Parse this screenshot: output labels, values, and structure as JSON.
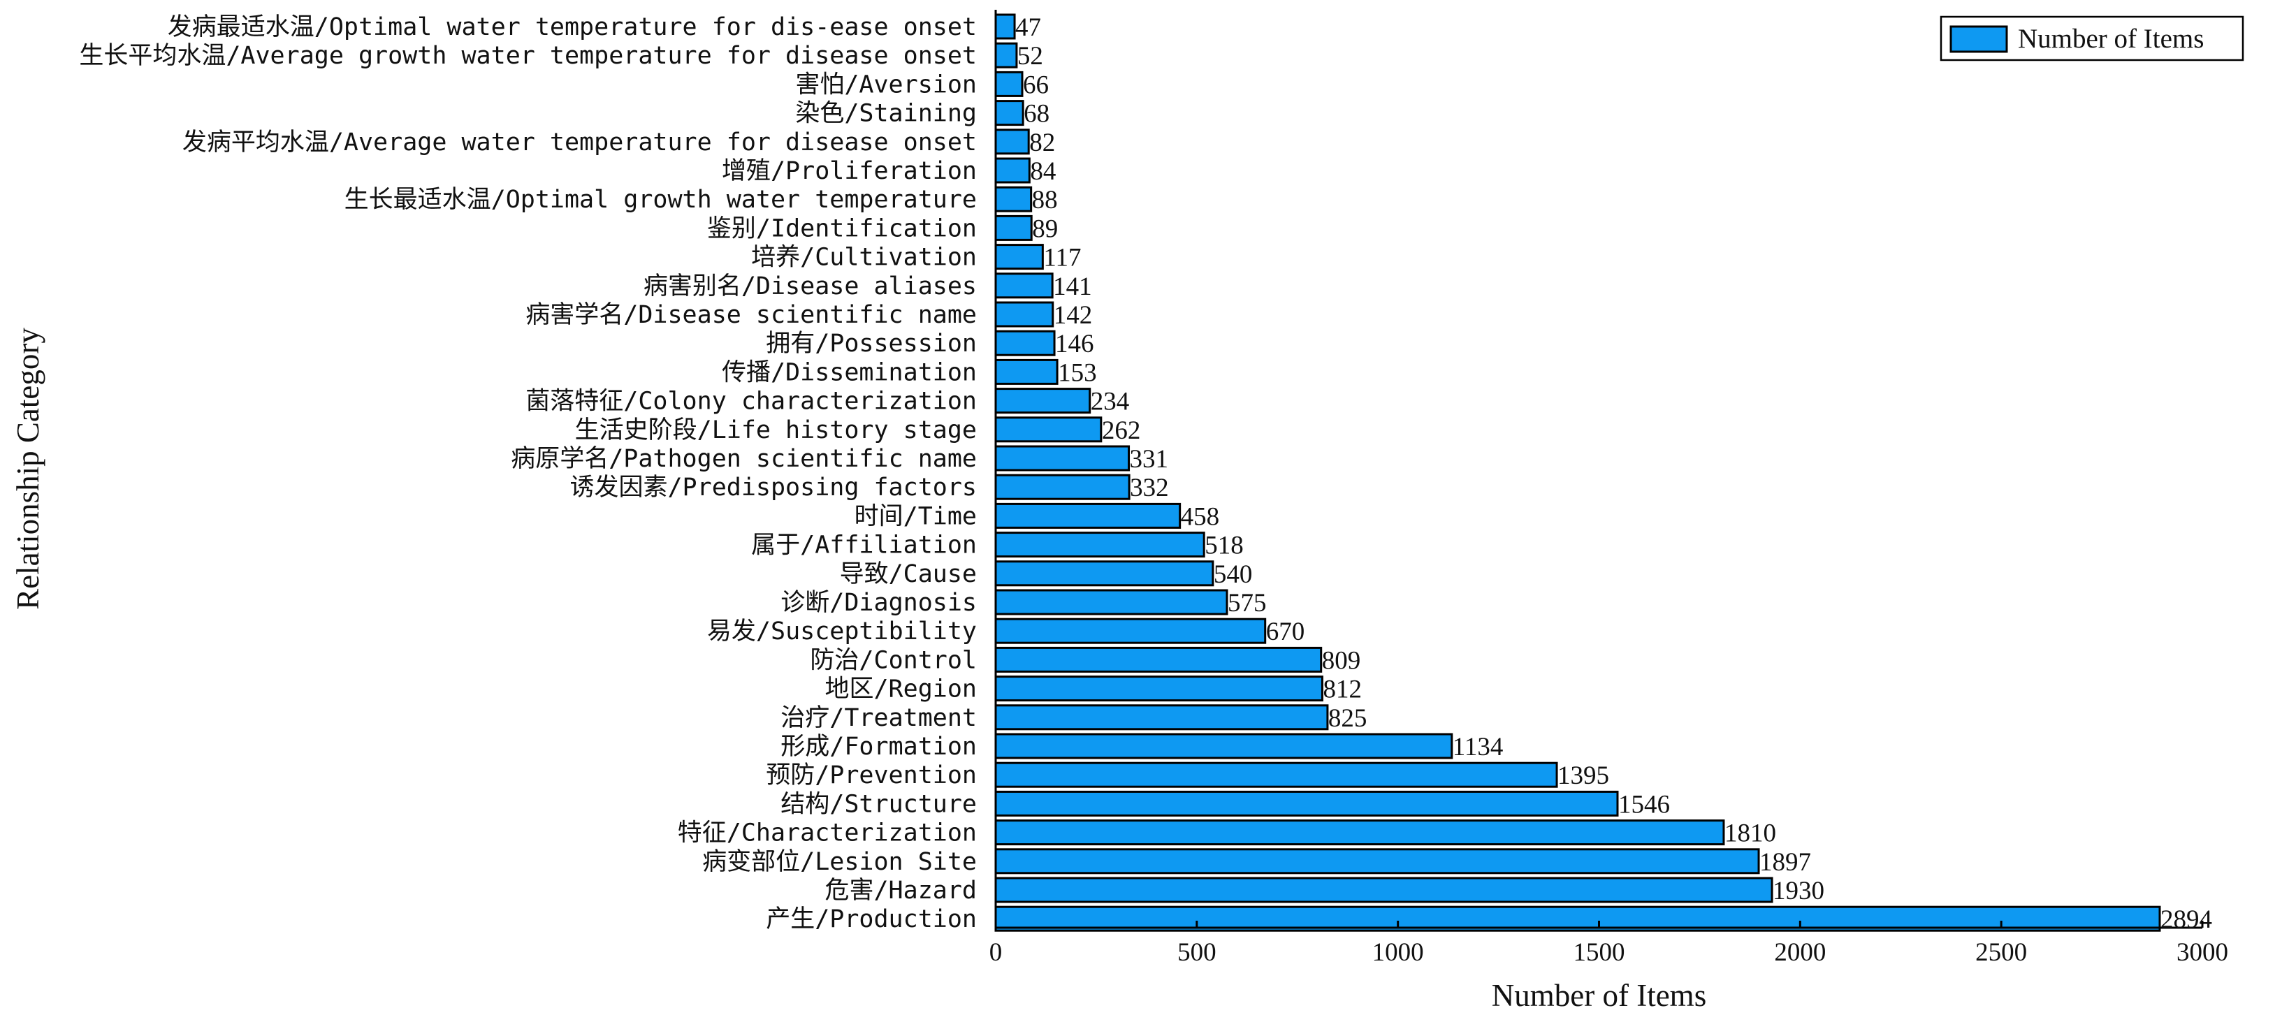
{
  "chart_data": {
    "type": "bar",
    "orientation": "horizontal",
    "xlabel": "Number of Items",
    "ylabel": "Relationship Category",
    "xlim": [
      0,
      3000
    ],
    "xticks": [
      "0",
      "500",
      "1000",
      "1500",
      "2000",
      "2500",
      "3000"
    ],
    "grid": false,
    "legend": {
      "position": "top-right",
      "entries": [
        "Number of Items"
      ]
    },
    "bar_color": "#0E99F2",
    "bar_edge_color": "#000000",
    "categories": [
      "发病最适水温/Optimal water temperature for dis-ease onset",
      "生长平均水温/Average growth water temperature for disease onset",
      "害怕/Aversion",
      "染色/Staining",
      "发病平均水温/Average water temperature for disease onset",
      "增殖/Proliferation",
      "生长最适水温/Optimal growth water temperature",
      "鉴别/Identification",
      "培养/Cultivation",
      "病害别名/Disease aliases",
      "病害学名/Disease scientific name",
      "拥有/Possession",
      "传播/Dissemination",
      "菌落特征/Colony characterization",
      "生活史阶段/Life history stage",
      "病原学名/Pathogen scientific name",
      "诱发因素/Predisposing factors",
      "时间/Time",
      "属于/Affiliation",
      "导致/Cause",
      "诊断/Diagnosis",
      "易发/Susceptibility",
      "防治/Control",
      "地区/Region",
      "治疗/Treatment",
      "形成/Formation",
      "预防/Prevention",
      "结构/Structure",
      "特征/Characterization",
      "病变部位/Lesion Site",
      "危害/Hazard",
      "产生/Production"
    ],
    "values": [
      47,
      52,
      66,
      68,
      82,
      84,
      88,
      89,
      117,
      141,
      142,
      146,
      153,
      234,
      262,
      331,
      332,
      458,
      518,
      540,
      575,
      670,
      809,
      812,
      825,
      1134,
      1395,
      1546,
      1810,
      1897,
      1930,
      2894
    ]
  }
}
